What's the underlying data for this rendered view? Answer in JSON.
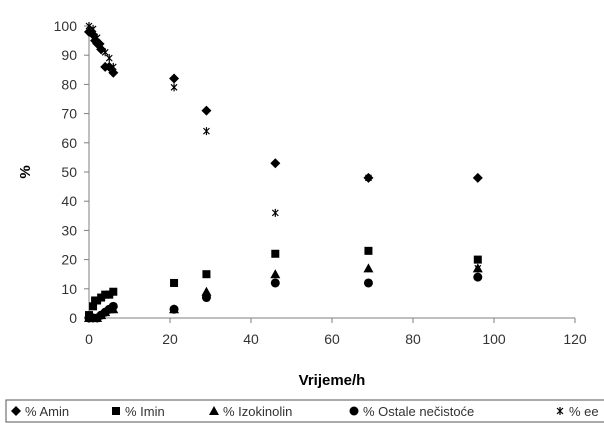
{
  "chart_data": {
    "type": "scatter",
    "xlabel": "Vrijeme/h",
    "ylabel": "%",
    "xlim": [
      0,
      120
    ],
    "ylim": [
      0,
      100
    ],
    "xticks": [
      "0",
      "20",
      "40",
      "60",
      "80",
      "100",
      "120"
    ],
    "yticks": [
      "0",
      "10",
      "20",
      "30",
      "40",
      "50",
      "60",
      "70",
      "80",
      "90",
      "100"
    ],
    "grid": false,
    "legend_position": "bottom",
    "series": [
      {
        "name": "% Amin",
        "marker": "diamond",
        "color": "#000000",
        "points": [
          [
            0,
            98
          ],
          [
            1,
            97
          ],
          [
            1.5,
            95
          ],
          [
            2,
            94
          ],
          [
            2.5,
            94
          ],
          [
            3,
            92
          ],
          [
            4,
            86
          ],
          [
            5,
            86
          ],
          [
            6,
            84
          ],
          [
            21,
            82
          ],
          [
            29,
            71
          ],
          [
            46,
            53
          ],
          [
            69,
            48
          ],
          [
            96,
            48
          ]
        ]
      },
      {
        "name": "% Imin",
        "marker": "square",
        "color": "#000000",
        "points": [
          [
            0,
            1
          ],
          [
            1,
            4
          ],
          [
            1.5,
            6
          ],
          [
            2,
            6
          ],
          [
            3,
            7
          ],
          [
            4,
            8
          ],
          [
            5,
            8
          ],
          [
            6,
            9
          ],
          [
            21,
            12
          ],
          [
            29,
            15
          ],
          [
            46,
            22
          ],
          [
            69,
            23
          ],
          [
            96,
            20
          ]
        ]
      },
      {
        "name": "% Izokinolin",
        "marker": "triangle",
        "color": "#000000",
        "points": [
          [
            0,
            0
          ],
          [
            1,
            0
          ],
          [
            2,
            0
          ],
          [
            3,
            1
          ],
          [
            4,
            2
          ],
          [
            5,
            3
          ],
          [
            6,
            3
          ],
          [
            21,
            3
          ],
          [
            29,
            9
          ],
          [
            46,
            15
          ],
          [
            69,
            17
          ],
          [
            96,
            17
          ]
        ]
      },
      {
        "name": "% Ostale nečistoće",
        "marker": "circle",
        "color": "#000000",
        "points": [
          [
            0,
            0
          ],
          [
            1,
            0
          ],
          [
            2,
            0
          ],
          [
            3,
            1
          ],
          [
            4,
            2
          ],
          [
            5,
            3
          ],
          [
            6,
            4
          ],
          [
            21,
            3
          ],
          [
            29,
            7
          ],
          [
            46,
            12
          ],
          [
            69,
            12
          ],
          [
            96,
            14
          ]
        ]
      },
      {
        "name": "% ee",
        "marker": "x",
        "color": "#000000",
        "points": [
          [
            0,
            100
          ],
          [
            1,
            99
          ],
          [
            2,
            96
          ],
          [
            3,
            93
          ],
          [
            4,
            91
          ],
          [
            5,
            89
          ],
          [
            6,
            86
          ],
          [
            21,
            79
          ],
          [
            29,
            64
          ],
          [
            46,
            36
          ],
          [
            69,
            48
          ],
          [
            96,
            17
          ]
        ]
      }
    ]
  }
}
